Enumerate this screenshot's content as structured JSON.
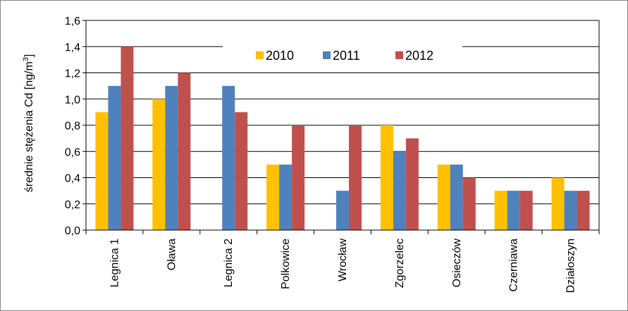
{
  "chart_data": {
    "type": "bar",
    "title": "",
    "xlabel": "",
    "ylabel_main": "średnie stężenia Cd [ng/m",
    "ylabel_sup": "3",
    "ylabel_end": "]",
    "ylim": [
      0,
      1.6
    ],
    "yticks": [
      "0,0",
      "0,2",
      "0,4",
      "0,6",
      "0,8",
      "1,0",
      "1,2",
      "1,4",
      "1,6"
    ],
    "categories": [
      "Legnica 1",
      "Oława",
      "Legnica 2",
      "Polkowice",
      "Wrocław",
      "Zgorzelec",
      "Osieczów",
      "Czerniawa",
      "Działoszyn"
    ],
    "series": [
      {
        "name": "2010",
        "color": "#FFC000",
        "values": [
          0.9,
          1.0,
          null,
          0.5,
          null,
          0.8,
          0.5,
          0.3,
          0.4
        ]
      },
      {
        "name": "2011",
        "color": "#4F81BD",
        "values": [
          1.1,
          1.1,
          1.1,
          0.5,
          0.3,
          0.6,
          0.5,
          0.3,
          0.3
        ]
      },
      {
        "name": "2012",
        "color": "#C0504D",
        "values": [
          1.4,
          1.2,
          0.9,
          0.8,
          0.8,
          0.7,
          0.4,
          0.3,
          0.3
        ]
      }
    ],
    "grid": true,
    "legend": "top-right"
  }
}
